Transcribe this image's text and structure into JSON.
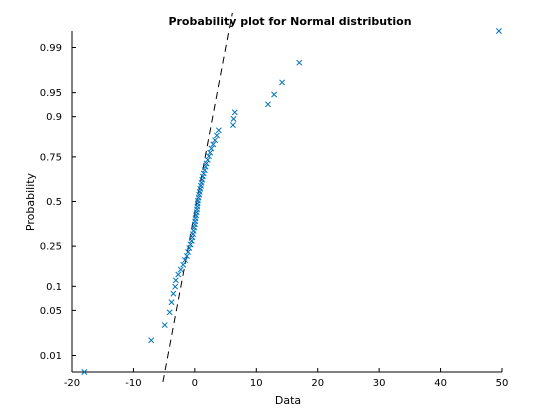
{
  "chart_data": {
    "type": "scatter",
    "title": "Probability plot for Normal distribution",
    "xlabel": "Data",
    "ylabel": "Probability",
    "xlim": [
      -20,
      50
    ],
    "xticks": [
      -20,
      -10,
      0,
      10,
      20,
      30,
      40,
      50
    ],
    "yscale": "normal-probability",
    "yticks": [
      0.01,
      0.05,
      0.1,
      0.25,
      0.5,
      0.75,
      0.9,
      0.95,
      0.99
    ],
    "ytick_labels": [
      "0.01",
      "0.05",
      "0.1",
      "0.25",
      "0.5",
      "0.75",
      "0.9",
      "0.95",
      "0.99"
    ],
    "grid": false,
    "marker": "x",
    "marker_color": "#0072bd",
    "reference_line": {
      "style": "dashed",
      "color": "#000000",
      "points": [
        [
          -5.2,
          0.0032
        ],
        [
          6.1,
          0.9978
        ]
      ]
    },
    "points": [
      [
        -18,
        0.005
      ],
      [
        -7.1,
        0.018
      ],
      [
        -4.9,
        0.031
      ],
      [
        -4.1,
        0.047
      ],
      [
        -3.8,
        0.064
      ],
      [
        -3.5,
        0.082
      ],
      [
        -3.2,
        0.099
      ],
      [
        -3.1,
        0.117
      ],
      [
        -2.7,
        0.135
      ],
      [
        -2.3,
        0.152
      ],
      [
        -1.9,
        0.17
      ],
      [
        -1.6,
        0.188
      ],
      [
        -1.3,
        0.205
      ],
      [
        -1.1,
        0.223
      ],
      [
        -0.9,
        0.241
      ],
      [
        -0.7,
        0.258
      ],
      [
        -0.5,
        0.276
      ],
      [
        -0.4,
        0.294
      ],
      [
        -0.3,
        0.311
      ],
      [
        -0.2,
        0.329
      ],
      [
        -0.1,
        0.347
      ],
      [
        0.0,
        0.364
      ],
      [
        0.05,
        0.382
      ],
      [
        0.1,
        0.4
      ],
      [
        0.2,
        0.417
      ],
      [
        0.3,
        0.435
      ],
      [
        0.35,
        0.453
      ],
      [
        0.4,
        0.47
      ],
      [
        0.45,
        0.488
      ],
      [
        0.5,
        0.505
      ],
      [
        0.6,
        0.523
      ],
      [
        0.7,
        0.541
      ],
      [
        0.8,
        0.558
      ],
      [
        0.9,
        0.576
      ],
      [
        1.0,
        0.594
      ],
      [
        1.1,
        0.611
      ],
      [
        1.2,
        0.629
      ],
      [
        1.3,
        0.647
      ],
      [
        1.45,
        0.664
      ],
      [
        1.6,
        0.682
      ],
      [
        1.75,
        0.7
      ],
      [
        1.9,
        0.717
      ],
      [
        2.1,
        0.735
      ],
      [
        2.3,
        0.753
      ],
      [
        2.5,
        0.77
      ],
      [
        2.7,
        0.788
      ],
      [
        3.0,
        0.806
      ],
      [
        3.3,
        0.823
      ],
      [
        3.6,
        0.841
      ],
      [
        3.9,
        0.859
      ],
      [
        6.2,
        0.876
      ],
      [
        6.3,
        0.894
      ],
      [
        6.5,
        0.911
      ],
      [
        11.9,
        0.929
      ],
      [
        12.9,
        0.947
      ],
      [
        14.2,
        0.964
      ],
      [
        17.0,
        0.982
      ],
      [
        49.5,
        0.995
      ]
    ]
  }
}
